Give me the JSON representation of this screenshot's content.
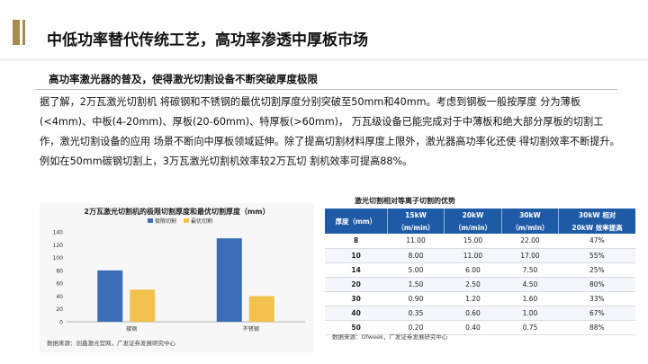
{
  "title": "中低功率替代传统工艺，高功率渗透中厚板市场",
  "subtitle": "高功率激光器的普及，使得激光切割设备不断突破厚度极限",
  "body_text": "据了解，2万瓦激光切割机 将碳钢和不锈钢的最优切割厚度分别突破至50mm和40mm。考虑到钢板一般按厚度 分为薄板(<4mm)、中板(4-20mm)、厚板(20-60mm)、特厚板(>60mm)， 万瓦级设备已能完成对于中薄板和绝大部分厚板的切割工作，激光切割设备的应用 场景不断向中厚板领域延伸。除了提高切割材料厚度上限外，激光器高功率化还使 得切割效率不断提升。例如在50mm碳钢切割上，3万瓦激光切割机效率较2万瓦切 割机效率可提高88%。",
  "chart_data": {
    "type": "bar",
    "title": "2万瓦激光切割机的极限切割厚度和最优切割厚度（mm）",
    "categories": [
      "碳钢",
      "不锈钢"
    ],
    "series": [
      {
        "name": "极限切割",
        "values": [
          80,
          130
        ],
        "color": "#3a6fb7"
      },
      {
        "name": "最优切割",
        "values": [
          50,
          40
        ],
        "color": "#f2c14e"
      }
    ],
    "ylim": [
      0,
      140
    ],
    "yticks": [
      0,
      20,
      40,
      60,
      80,
      100,
      120,
      140
    ],
    "grid": false,
    "legend": "top",
    "source": "数据来源：创鑫激光官网，广发证券发展研究中心"
  },
  "table": {
    "title": "激光切割相对等离子切割的优势",
    "headers": [
      {
        "top": "厚度（mm）",
        "bottom": ""
      },
      {
        "top": "15kW",
        "bottom": "（m/min）"
      },
      {
        "top": "20kW",
        "bottom": "（m/min）"
      },
      {
        "top": "30kW",
        "bottom": "（m/min）"
      },
      {
        "top": "30kW 相对",
        "bottom": "20kW 效率提高"
      }
    ],
    "rows": [
      [
        "8",
        "11.00",
        "15.00",
        "22.00",
        "47%"
      ],
      [
        "10",
        "8.00",
        "11.00",
        "17.00",
        "55%"
      ],
      [
        "14",
        "5.00",
        "6.00",
        "7.50",
        "25%"
      ],
      [
        "20",
        "1.50",
        "2.50",
        "4.50",
        "80%"
      ],
      [
        "30",
        "0.90",
        "1.20",
        "1.60",
        "33%"
      ],
      [
        "40",
        "0.35",
        "0.60",
        "1.00",
        "67%"
      ],
      [
        "50",
        "0.20",
        "0.40",
        "0.75",
        "88%"
      ]
    ],
    "source": "数据来源：Ofweek，广发证券发展研究中心"
  }
}
